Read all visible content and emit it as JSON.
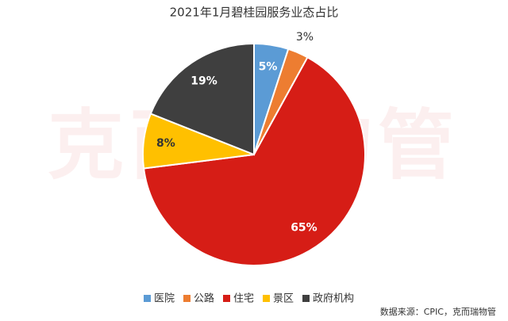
{
  "chart_data": {
    "type": "pie",
    "title": "2021年1月碧桂园服务业态占比",
    "categories": [
      "医院",
      "公路",
      "住宅",
      "景区",
      "政府机构"
    ],
    "values": [
      5,
      3,
      65,
      8,
      19
    ],
    "value_labels": [
      "5%",
      "3%",
      "65%",
      "8%",
      "19%"
    ],
    "colors": [
      "#5b9bd5",
      "#ed7d31",
      "#d61d16",
      "#ffc000",
      "#3f3f3f"
    ],
    "watermark": "克而瑞物管",
    "source": "数据来源：CPIC，克而瑞物管"
  }
}
